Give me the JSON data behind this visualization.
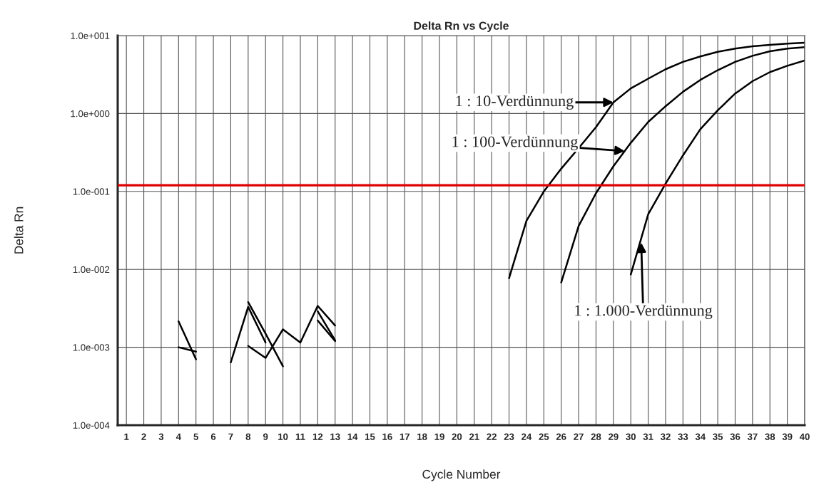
{
  "chart_data": {
    "type": "line",
    "title": "Delta Rn vs Cycle",
    "xlabel": "Cycle Number",
    "ylabel": "Delta Rn",
    "log": "y",
    "xlim": [
      0.5,
      40
    ],
    "xticks": [
      1,
      2,
      3,
      4,
      5,
      6,
      7,
      8,
      9,
      10,
      11,
      12,
      13,
      14,
      15,
      16,
      17,
      18,
      19,
      20,
      21,
      22,
      23,
      24,
      25,
      26,
      27,
      28,
      29,
      30,
      31,
      32,
      33,
      34,
      35,
      36,
      37,
      38,
      39,
      40
    ],
    "ylim": [
      0.0001,
      10
    ],
    "yticks": [
      {
        "value": 0.0001,
        "label": "1.0e-004"
      },
      {
        "value": 0.001,
        "label": "1.0e-003"
      },
      {
        "value": 0.01,
        "label": "1.0e-002"
      },
      {
        "value": 0.1,
        "label": "1.0e-001"
      },
      {
        "value": 1,
        "label": "1.0e+000"
      },
      {
        "value": 10,
        "label": "1.0e+001"
      }
    ],
    "grid": true,
    "legend": false,
    "line_style": "solid",
    "marker": "none",
    "series": [
      {
        "color": "#000000",
        "x": [
          23,
          24,
          25,
          26,
          27,
          28,
          29,
          30,
          31,
          32,
          33,
          34,
          35,
          36,
          37,
          38,
          39,
          40
        ],
        "values": [
          0.0077,
          0.042,
          0.1,
          0.196,
          0.36,
          0.67,
          1.39,
          2.1,
          2.8,
          3.7,
          4.6,
          5.4,
          6.2,
          6.8,
          7.3,
          7.6,
          7.9,
          8.1
        ]
      },
      {
        "color": "#000000",
        "x": [
          26,
          27,
          28,
          29,
          30,
          31,
          32,
          33,
          34,
          35,
          36,
          37,
          38,
          39,
          40
        ],
        "values": [
          0.0068,
          0.036,
          0.095,
          0.21,
          0.42,
          0.78,
          1.24,
          1.9,
          2.7,
          3.6,
          4.6,
          5.5,
          6.3,
          6.8,
          7.1
        ]
      },
      {
        "color": "#000000",
        "x": [
          30,
          31,
          32,
          33,
          34,
          35,
          36,
          37,
          38,
          39,
          40
        ],
        "values": [
          0.0086,
          0.051,
          0.126,
          0.29,
          0.63,
          1.1,
          1.8,
          2.6,
          3.4,
          4.1,
          4.8
        ]
      },
      {
        "color": "#000000",
        "x": [
          4,
          5
        ],
        "values": [
          0.00215,
          0.0007
        ]
      },
      {
        "color": "#000000",
        "x": [
          4,
          5
        ],
        "values": [
          0.001,
          0.00088
        ]
      },
      {
        "color": "#000000",
        "x": [
          7,
          8,
          9
        ],
        "values": [
          0.00064,
          0.0033,
          0.00115
        ]
      },
      {
        "color": "#000000",
        "x": [
          8,
          9,
          10
        ],
        "values": [
          0.0038,
          0.0015,
          0.00057
        ]
      },
      {
        "color": "#000000",
        "x": [
          8,
          9,
          10,
          11,
          12,
          13
        ],
        "values": [
          0.00104,
          0.00073,
          0.0017,
          0.00115,
          0.0034,
          0.0019
        ]
      },
      {
        "color": "#000000",
        "x": [
          12,
          13
        ],
        "values": [
          0.0029,
          0.00123
        ]
      },
      {
        "color": "#000000",
        "x": [
          12,
          13
        ],
        "values": [
          0.0022,
          0.0012
        ]
      }
    ],
    "ref_lines": [
      {
        "axis": "y",
        "value": 0.12,
        "color": "#e00000",
        "line_style": "solid"
      }
    ],
    "annotations": [
      {
        "text": "1 : 10-Verdünnung",
        "x": 29,
        "y": 1.39
      },
      {
        "text": "1 : 100-Verdünnung",
        "x": 29.65,
        "y": 0.33
      },
      {
        "text": "1 : 1.000-Verdünnung",
        "x": 30.6,
        "y": 0.022
      }
    ]
  }
}
